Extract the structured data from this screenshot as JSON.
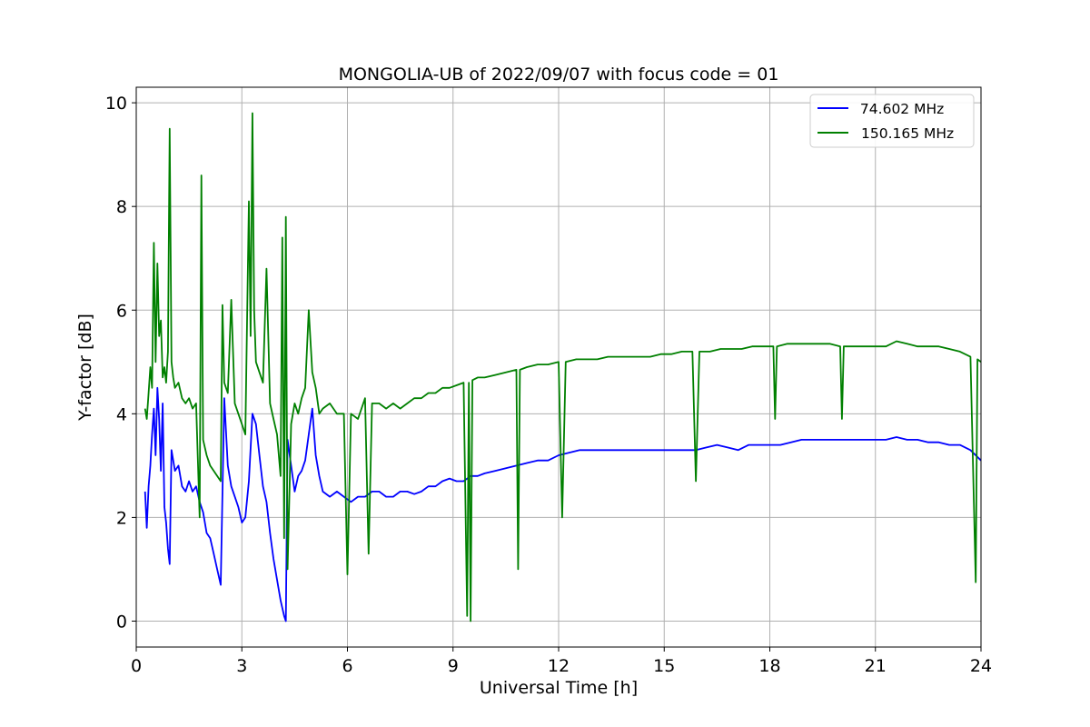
{
  "chart_data": {
    "type": "line",
    "title": "MONGOLIA-UB of 2022/09/07 with focus code = 01",
    "xlabel": "Universal Time [h]",
    "ylabel": "Y-factor [dB]",
    "xlim": [
      0,
      24
    ],
    "ylim": [
      -0.5,
      10.3
    ],
    "xticks": [
      0,
      3,
      6,
      9,
      12,
      15,
      18,
      21,
      24
    ],
    "xtick_labels": [
      "0",
      "3",
      "6",
      "9",
      "12",
      "15",
      "18",
      "21",
      "24"
    ],
    "yticks": [
      0,
      2,
      4,
      6,
      8,
      10
    ],
    "ytick_labels": [
      "0",
      "2",
      "4",
      "6",
      "8",
      "10"
    ],
    "grid": true,
    "legend_position": "top-right",
    "series": [
      {
        "name": " 74.602 MHz",
        "color": "#0000ff",
        "points": [
          [
            0.25,
            2.5
          ],
          [
            0.3,
            1.8
          ],
          [
            0.35,
            2.6
          ],
          [
            0.4,
            3.0
          ],
          [
            0.45,
            3.6
          ],
          [
            0.5,
            4.1
          ],
          [
            0.55,
            3.2
          ],
          [
            0.6,
            4.5
          ],
          [
            0.65,
            3.9
          ],
          [
            0.7,
            2.9
          ],
          [
            0.75,
            4.2
          ],
          [
            0.8,
            2.2
          ],
          [
            0.85,
            1.9
          ],
          [
            0.9,
            1.4
          ],
          [
            0.95,
            1.1
          ],
          [
            1.0,
            3.3
          ],
          [
            1.05,
            3.1
          ],
          [
            1.1,
            2.9
          ],
          [
            1.2,
            3.0
          ],
          [
            1.3,
            2.6
          ],
          [
            1.4,
            2.5
          ],
          [
            1.5,
            2.7
          ],
          [
            1.6,
            2.5
          ],
          [
            1.7,
            2.6
          ],
          [
            1.8,
            2.3
          ],
          [
            1.9,
            2.1
          ],
          [
            2.0,
            1.7
          ],
          [
            2.1,
            1.6
          ],
          [
            2.2,
            1.3
          ],
          [
            2.3,
            1.0
          ],
          [
            2.4,
            0.7
          ],
          [
            2.5,
            4.3
          ],
          [
            2.6,
            3.0
          ],
          [
            2.7,
            2.6
          ],
          [
            2.8,
            2.4
          ],
          [
            2.9,
            2.2
          ],
          [
            3.0,
            1.9
          ],
          [
            3.1,
            2.0
          ],
          [
            3.2,
            2.7
          ],
          [
            3.3,
            4.0
          ],
          [
            3.4,
            3.8
          ],
          [
            3.5,
            3.2
          ],
          [
            3.6,
            2.6
          ],
          [
            3.7,
            2.3
          ],
          [
            3.8,
            1.7
          ],
          [
            3.9,
            1.2
          ],
          [
            4.0,
            0.8
          ],
          [
            4.1,
            0.4
          ],
          [
            4.2,
            0.1
          ],
          [
            4.25,
            0.0
          ],
          [
            4.3,
            3.5
          ],
          [
            4.4,
            3.0
          ],
          [
            4.5,
            2.5
          ],
          [
            4.6,
            2.8
          ],
          [
            4.7,
            2.9
          ],
          [
            4.8,
            3.1
          ],
          [
            4.9,
            3.6
          ],
          [
            5.0,
            4.1
          ],
          [
            5.1,
            3.2
          ],
          [
            5.2,
            2.8
          ],
          [
            5.3,
            2.5
          ],
          [
            5.5,
            2.4
          ],
          [
            5.7,
            2.5
          ],
          [
            5.9,
            2.4
          ],
          [
            6.1,
            2.3
          ],
          [
            6.3,
            2.4
          ],
          [
            6.5,
            2.4
          ],
          [
            6.7,
            2.5
          ],
          [
            6.9,
            2.5
          ],
          [
            7.1,
            2.4
          ],
          [
            7.3,
            2.4
          ],
          [
            7.5,
            2.5
          ],
          [
            7.7,
            2.5
          ],
          [
            7.9,
            2.45
          ],
          [
            8.1,
            2.5
          ],
          [
            8.3,
            2.6
          ],
          [
            8.5,
            2.6
          ],
          [
            8.7,
            2.7
          ],
          [
            8.9,
            2.75
          ],
          [
            9.1,
            2.7
          ],
          [
            9.3,
            2.7
          ],
          [
            9.5,
            2.8
          ],
          [
            9.7,
            2.8
          ],
          [
            9.9,
            2.85
          ],
          [
            10.2,
            2.9
          ],
          [
            10.5,
            2.95
          ],
          [
            10.8,
            3.0
          ],
          [
            11.1,
            3.05
          ],
          [
            11.4,
            3.1
          ],
          [
            11.7,
            3.1
          ],
          [
            12.0,
            3.2
          ],
          [
            12.3,
            3.25
          ],
          [
            12.6,
            3.3
          ],
          [
            12.9,
            3.3
          ],
          [
            13.2,
            3.3
          ],
          [
            13.5,
            3.3
          ],
          [
            13.8,
            3.3
          ],
          [
            14.1,
            3.3
          ],
          [
            14.4,
            3.3
          ],
          [
            14.7,
            3.3
          ],
          [
            15.0,
            3.3
          ],
          [
            15.3,
            3.3
          ],
          [
            15.6,
            3.3
          ],
          [
            15.9,
            3.3
          ],
          [
            16.2,
            3.35
          ],
          [
            16.5,
            3.4
          ],
          [
            16.8,
            3.35
          ],
          [
            17.1,
            3.3
          ],
          [
            17.4,
            3.4
          ],
          [
            17.7,
            3.4
          ],
          [
            18.0,
            3.4
          ],
          [
            18.3,
            3.4
          ],
          [
            18.6,
            3.45
          ],
          [
            18.9,
            3.5
          ],
          [
            19.2,
            3.5
          ],
          [
            19.5,
            3.5
          ],
          [
            19.8,
            3.5
          ],
          [
            20.1,
            3.5
          ],
          [
            20.4,
            3.5
          ],
          [
            20.7,
            3.5
          ],
          [
            21.0,
            3.5
          ],
          [
            21.3,
            3.5
          ],
          [
            21.6,
            3.55
          ],
          [
            21.9,
            3.5
          ],
          [
            22.2,
            3.5
          ],
          [
            22.5,
            3.45
          ],
          [
            22.8,
            3.45
          ],
          [
            23.1,
            3.4
          ],
          [
            23.4,
            3.4
          ],
          [
            23.7,
            3.3
          ],
          [
            24.0,
            3.1
          ]
        ]
      },
      {
        "name": "150.165 MHz",
        "color": "#008000",
        "points": [
          [
            0.25,
            4.1
          ],
          [
            0.3,
            3.9
          ],
          [
            0.35,
            4.4
          ],
          [
            0.4,
            4.9
          ],
          [
            0.45,
            4.5
          ],
          [
            0.5,
            7.3
          ],
          [
            0.55,
            5.0
          ],
          [
            0.6,
            6.9
          ],
          [
            0.65,
            5.5
          ],
          [
            0.7,
            5.8
          ],
          [
            0.75,
            4.7
          ],
          [
            0.8,
            4.9
          ],
          [
            0.85,
            4.6
          ],
          [
            0.9,
            5.2
          ],
          [
            0.95,
            9.5
          ],
          [
            1.0,
            5.0
          ],
          [
            1.05,
            4.7
          ],
          [
            1.1,
            4.5
          ],
          [
            1.2,
            4.6
          ],
          [
            1.3,
            4.3
          ],
          [
            1.4,
            4.2
          ],
          [
            1.5,
            4.3
          ],
          [
            1.6,
            4.1
          ],
          [
            1.7,
            4.2
          ],
          [
            1.8,
            2.0
          ],
          [
            1.85,
            8.6
          ],
          [
            1.9,
            3.5
          ],
          [
            2.0,
            3.2
          ],
          [
            2.1,
            3.0
          ],
          [
            2.2,
            2.9
          ],
          [
            2.3,
            2.8
          ],
          [
            2.4,
            2.7
          ],
          [
            2.45,
            6.1
          ],
          [
            2.5,
            4.6
          ],
          [
            2.6,
            4.4
          ],
          [
            2.7,
            6.2
          ],
          [
            2.8,
            4.2
          ],
          [
            2.9,
            4.0
          ],
          [
            3.0,
            3.8
          ],
          [
            3.1,
            3.6
          ],
          [
            3.2,
            8.1
          ],
          [
            3.25,
            5.5
          ],
          [
            3.3,
            9.8
          ],
          [
            3.35,
            6.0
          ],
          [
            3.4,
            5.0
          ],
          [
            3.5,
            4.8
          ],
          [
            3.6,
            4.6
          ],
          [
            3.7,
            6.8
          ],
          [
            3.8,
            4.2
          ],
          [
            3.9,
            3.9
          ],
          [
            4.0,
            3.6
          ],
          [
            4.1,
            2.8
          ],
          [
            4.15,
            7.4
          ],
          [
            4.2,
            1.6
          ],
          [
            4.25,
            7.8
          ],
          [
            4.3,
            1.0
          ],
          [
            4.4,
            3.8
          ],
          [
            4.5,
            4.2
          ],
          [
            4.6,
            4.0
          ],
          [
            4.7,
            4.3
          ],
          [
            4.8,
            4.5
          ],
          [
            4.9,
            6.0
          ],
          [
            5.0,
            4.8
          ],
          [
            5.1,
            4.5
          ],
          [
            5.2,
            4.0
          ],
          [
            5.3,
            4.1
          ],
          [
            5.5,
            4.2
          ],
          [
            5.7,
            4.0
          ],
          [
            5.9,
            4.0
          ],
          [
            6.0,
            0.9
          ],
          [
            6.1,
            4.0
          ],
          [
            6.3,
            3.9
          ],
          [
            6.5,
            4.3
          ],
          [
            6.6,
            1.3
          ],
          [
            6.7,
            4.2
          ],
          [
            6.9,
            4.2
          ],
          [
            7.1,
            4.1
          ],
          [
            7.3,
            4.2
          ],
          [
            7.5,
            4.1
          ],
          [
            7.7,
            4.2
          ],
          [
            7.9,
            4.3
          ],
          [
            8.1,
            4.3
          ],
          [
            8.3,
            4.4
          ],
          [
            8.5,
            4.4
          ],
          [
            8.7,
            4.5
          ],
          [
            8.9,
            4.5
          ],
          [
            9.1,
            4.55
          ],
          [
            9.3,
            4.6
          ],
          [
            9.4,
            0.1
          ],
          [
            9.45,
            4.6
          ],
          [
            9.5,
            0.0
          ],
          [
            9.55,
            4.65
          ],
          [
            9.7,
            4.7
          ],
          [
            9.9,
            4.7
          ],
          [
            10.2,
            4.75
          ],
          [
            10.5,
            4.8
          ],
          [
            10.8,
            4.85
          ],
          [
            10.85,
            1.0
          ],
          [
            10.9,
            4.85
          ],
          [
            11.1,
            4.9
          ],
          [
            11.4,
            4.95
          ],
          [
            11.7,
            4.95
          ],
          [
            12.0,
            5.0
          ],
          [
            12.1,
            2.0
          ],
          [
            12.2,
            5.0
          ],
          [
            12.5,
            5.05
          ],
          [
            12.8,
            5.05
          ],
          [
            13.1,
            5.05
          ],
          [
            13.4,
            5.1
          ],
          [
            13.7,
            5.1
          ],
          [
            14.0,
            5.1
          ],
          [
            14.3,
            5.1
          ],
          [
            14.6,
            5.1
          ],
          [
            14.9,
            5.15
          ],
          [
            15.2,
            5.15
          ],
          [
            15.5,
            5.2
          ],
          [
            15.8,
            5.2
          ],
          [
            15.9,
            2.7
          ],
          [
            16.0,
            5.2
          ],
          [
            16.3,
            5.2
          ],
          [
            16.6,
            5.25
          ],
          [
            16.9,
            5.25
          ],
          [
            17.2,
            5.25
          ],
          [
            17.5,
            5.3
          ],
          [
            17.8,
            5.3
          ],
          [
            18.1,
            5.3
          ],
          [
            18.15,
            3.9
          ],
          [
            18.2,
            5.3
          ],
          [
            18.5,
            5.35
          ],
          [
            18.8,
            5.35
          ],
          [
            19.1,
            5.35
          ],
          [
            19.4,
            5.35
          ],
          [
            19.7,
            5.35
          ],
          [
            20.0,
            5.3
          ],
          [
            20.05,
            3.9
          ],
          [
            20.1,
            5.3
          ],
          [
            20.4,
            5.3
          ],
          [
            20.7,
            5.3
          ],
          [
            21.0,
            5.3
          ],
          [
            21.3,
            5.3
          ],
          [
            21.6,
            5.4
          ],
          [
            21.9,
            5.35
          ],
          [
            22.2,
            5.3
          ],
          [
            22.5,
            5.3
          ],
          [
            22.8,
            5.3
          ],
          [
            23.1,
            5.25
          ],
          [
            23.4,
            5.2
          ],
          [
            23.7,
            5.1
          ],
          [
            23.85,
            0.75
          ],
          [
            23.9,
            5.05
          ],
          [
            24.0,
            5.0
          ]
        ]
      }
    ]
  }
}
